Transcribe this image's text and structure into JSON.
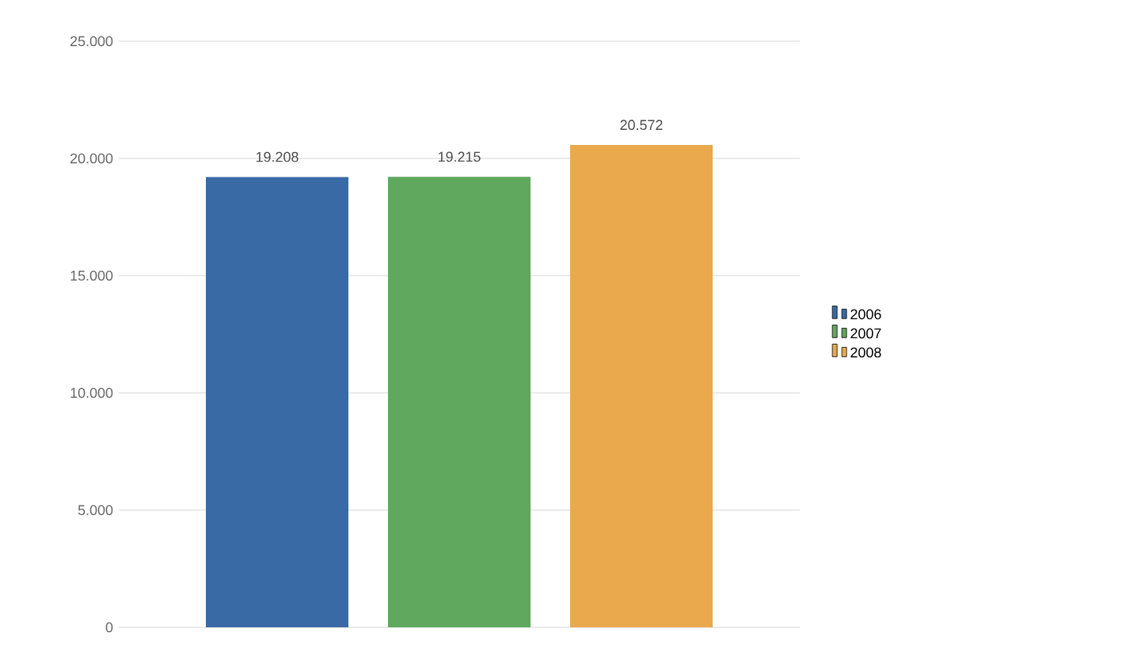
{
  "chart_data": {
    "type": "bar",
    "categories": [
      null
    ],
    "series": [
      {
        "name": "2006",
        "color": "#3a6aa6",
        "values": [
          19208
        ],
        "value_labels": [
          "19.208"
        ]
      },
      {
        "name": "2007",
        "color": "#5fa85e",
        "values": [
          19215
        ],
        "value_labels": [
          "19.215"
        ]
      },
      {
        "name": "2008",
        "color": "#e9a94c",
        "values": [
          20572
        ],
        "value_labels": [
          "20.572"
        ]
      }
    ],
    "ylim": [
      0,
      25000
    ],
    "yticks": [
      {
        "value": 0,
        "label": "0"
      },
      {
        "value": 5000,
        "label": "5.000"
      },
      {
        "value": 10000,
        "label": "10.000"
      },
      {
        "value": 15000,
        "label": "15.000"
      },
      {
        "value": 20000,
        "label": "20.000"
      },
      {
        "value": 25000,
        "label": "25.000"
      }
    ],
    "grid": "y",
    "legend": "right"
  }
}
